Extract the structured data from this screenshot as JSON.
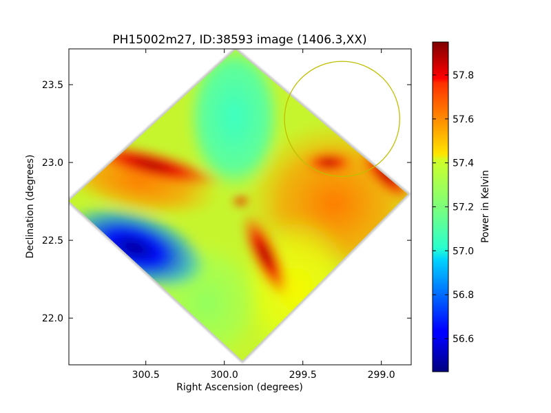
{
  "chart_data": {
    "type": "heatmap",
    "title": "PH15002m27, ID:38593 image (1406.3,XX)",
    "xlabel": "Right Ascension (degrees)",
    "ylabel": "Declination (degrees)",
    "x_axis_reversed": true,
    "xlim": [
      300.99,
      298.81
    ],
    "ylim": [
      21.7,
      23.73
    ],
    "x_ticks": [
      "300.5",
      "300.0",
      "299.5",
      "299.0"
    ],
    "x_tick_values": [
      300.5,
      300.0,
      299.5,
      299.0
    ],
    "y_ticks": [
      "22.0",
      "22.5",
      "23.0",
      "23.5"
    ],
    "y_tick_values": [
      22.0,
      22.5,
      23.0,
      23.5
    ],
    "colormap": "jet",
    "colorbar": {
      "label": "Power in Kelvin",
      "range": [
        56.45,
        57.95
      ],
      "ticks": [
        "56.6",
        "56.8",
        "57.0",
        "57.2",
        "57.4",
        "57.6",
        "57.8"
      ],
      "tick_values": [
        56.6,
        56.8,
        57.0,
        57.2,
        57.4,
        57.6,
        57.8
      ]
    },
    "map_extent": {
      "ra_range": [
        299.0,
        300.99
      ],
      "dec_range": [
        21.7,
        23.73
      ],
      "shape": "rotated square (diamond)"
    },
    "circle_marker": {
      "center_ra": 299.25,
      "center_dec": 23.28,
      "radius_deg": 0.37,
      "color": "#bfbf00"
    },
    "features": [
      {
        "description": "low-power region",
        "ra": 300.65,
        "dec": 22.5,
        "value": 56.45
      },
      {
        "description": "high-power ridge",
        "ra": 300.5,
        "dec": 22.95,
        "value": 57.9
      },
      {
        "description": "high-power ridge",
        "ra": 299.8,
        "dec": 22.45,
        "value": 57.9
      },
      {
        "description": "high-power ridge",
        "ra": 299.1,
        "dec": 22.9,
        "value": 57.9
      },
      {
        "description": "high-power spot",
        "ra": 299.4,
        "dec": 23.0,
        "value": 57.9
      },
      {
        "description": "central plateau",
        "ra": 300.0,
        "dec": 23.3,
        "value": 57.05
      }
    ]
  }
}
